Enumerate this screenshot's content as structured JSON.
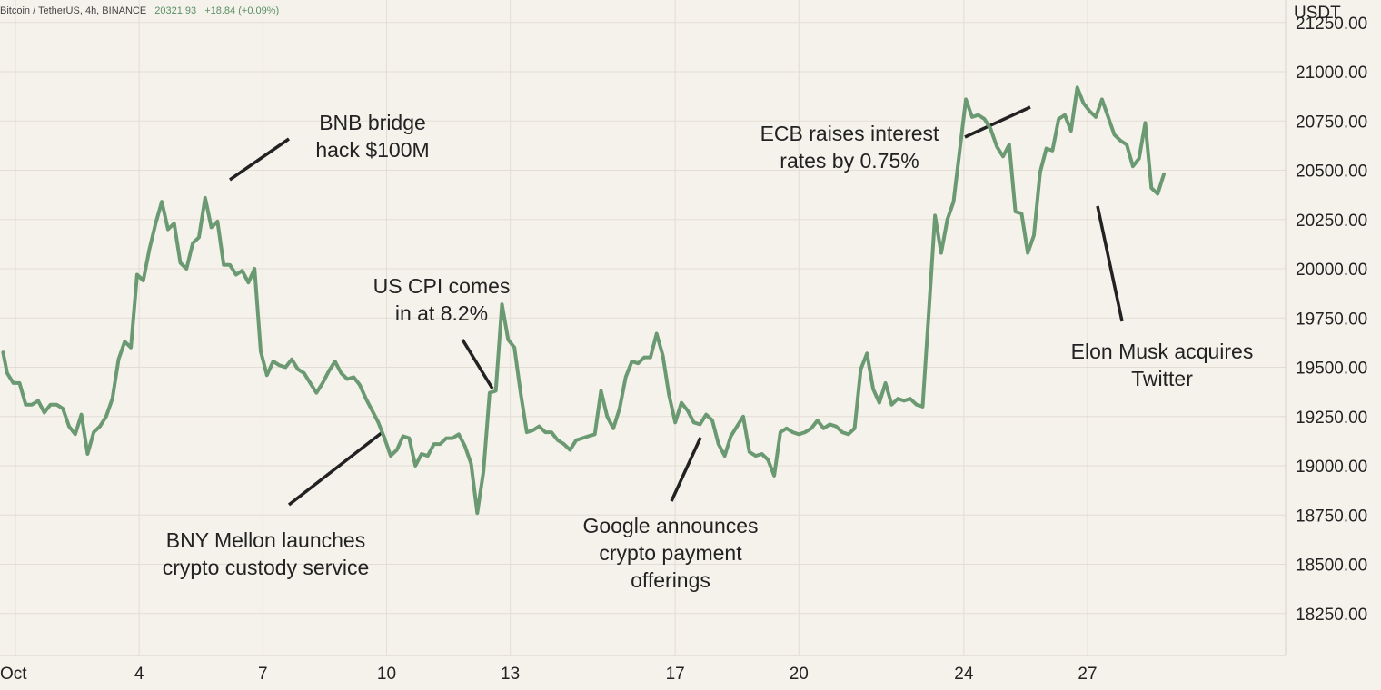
{
  "header": {
    "symbol": "Bitcoin / TetherUS, 4h, BINANCE",
    "last_price": "20321.93",
    "change": "+18.84 (+0.09%)"
  },
  "colors": {
    "background": "#f5f2ec",
    "line": "#6b9a72",
    "grid": "#e3ddd3",
    "annotation_line": "#222222",
    "header_green": "#5a8f63"
  },
  "annotations": [
    {
      "id": "bnb",
      "text": "BNB bridge\nhack $100M"
    },
    {
      "id": "cpi",
      "text": "US CPI comes\nin at 8.2%"
    },
    {
      "id": "ecb",
      "text": "ECB raises interest\nrates by 0.75%"
    },
    {
      "id": "musk",
      "text": "Elon Musk acquires\nTwitter"
    },
    {
      "id": "bny",
      "text": "BNY Mellon launches\ncrypto custody service"
    },
    {
      "id": "google",
      "text": "Google announces\ncrypto payment\nofferings"
    }
  ],
  "chart_data": {
    "type": "line",
    "title": "",
    "xlabel": "",
    "ylabel": "USDT",
    "grid": true,
    "x_tick_labels": [
      "Oct",
      "4",
      "7",
      "10",
      "13",
      "17",
      "20",
      "24",
      "27"
    ],
    "x_tick_days": [
      1,
      4,
      7,
      10,
      13,
      17,
      20,
      24,
      27
    ],
    "y_tick_labels": [
      "21250.00",
      "21000.00",
      "20750.00",
      "20500.00",
      "20250.00",
      "20000.00",
      "19750.00",
      "19500.00",
      "19250.00",
      "19000.00",
      "18750.00",
      "18500.00",
      "18250.00"
    ],
    "ylim": [
      18000,
      21300
    ],
    "xlim_days": [
      0.7,
      31.45
    ],
    "series": [
      {
        "values": [
          [
            0.7,
            19575
          ],
          [
            0.8,
            19470
          ],
          [
            0.95,
            19420
          ],
          [
            1.1,
            19420
          ],
          [
            1.25,
            19310
          ],
          [
            1.4,
            19310
          ],
          [
            1.55,
            19330
          ],
          [
            1.7,
            19270
          ],
          [
            1.85,
            19310
          ],
          [
            2.0,
            19310
          ],
          [
            2.15,
            19290
          ],
          [
            2.3,
            19200
          ],
          [
            2.45,
            19160
          ],
          [
            2.6,
            19260
          ],
          [
            2.75,
            19060
          ],
          [
            2.9,
            19170
          ],
          [
            3.05,
            19200
          ],
          [
            3.2,
            19250
          ],
          [
            3.35,
            19340
          ],
          [
            3.5,
            19540
          ],
          [
            3.65,
            19630
          ],
          [
            3.8,
            19600
          ],
          [
            3.95,
            19970
          ],
          [
            4.1,
            19940
          ],
          [
            4.25,
            20100
          ],
          [
            4.4,
            20230
          ],
          [
            4.55,
            20340
          ],
          [
            4.7,
            20200
          ],
          [
            4.85,
            20230
          ],
          [
            5.0,
            20030
          ],
          [
            5.15,
            20000
          ],
          [
            5.3,
            20130
          ],
          [
            5.45,
            20160
          ],
          [
            5.6,
            20360
          ],
          [
            5.75,
            20210
          ],
          [
            5.9,
            20240
          ],
          [
            6.05,
            20020
          ],
          [
            6.2,
            20020
          ],
          [
            6.35,
            19970
          ],
          [
            6.5,
            19990
          ],
          [
            6.65,
            19930
          ],
          [
            6.8,
            20000
          ],
          [
            6.95,
            19580
          ],
          [
            7.1,
            19460
          ],
          [
            7.25,
            19530
          ],
          [
            7.4,
            19510
          ],
          [
            7.55,
            19500
          ],
          [
            7.7,
            19540
          ],
          [
            7.85,
            19490
          ],
          [
            8.0,
            19470
          ],
          [
            8.15,
            19420
          ],
          [
            8.3,
            19370
          ],
          [
            8.45,
            19420
          ],
          [
            8.6,
            19480
          ],
          [
            8.75,
            19530
          ],
          [
            8.9,
            19470
          ],
          [
            9.05,
            19440
          ],
          [
            9.2,
            19450
          ],
          [
            9.35,
            19410
          ],
          [
            9.5,
            19340
          ],
          [
            9.65,
            19280
          ],
          [
            9.8,
            19220
          ],
          [
            9.95,
            19140
          ],
          [
            10.1,
            19050
          ],
          [
            10.25,
            19080
          ],
          [
            10.4,
            19150
          ],
          [
            10.55,
            19140
          ],
          [
            10.7,
            19000
          ],
          [
            10.85,
            19060
          ],
          [
            11.0,
            19050
          ],
          [
            11.15,
            19110
          ],
          [
            11.3,
            19110
          ],
          [
            11.45,
            19140
          ],
          [
            11.6,
            19140
          ],
          [
            11.75,
            19160
          ],
          [
            11.9,
            19100
          ],
          [
            12.05,
            19010
          ],
          [
            12.2,
            18760
          ],
          [
            12.35,
            18970
          ],
          [
            12.5,
            19370
          ],
          [
            12.65,
            19380
          ],
          [
            12.8,
            19820
          ],
          [
            12.95,
            19640
          ],
          [
            13.1,
            19600
          ],
          [
            13.25,
            19370
          ],
          [
            13.4,
            19170
          ],
          [
            13.55,
            19180
          ],
          [
            13.7,
            19200
          ],
          [
            13.85,
            19170
          ],
          [
            14.0,
            19170
          ],
          [
            14.15,
            19130
          ],
          [
            14.3,
            19110
          ],
          [
            14.45,
            19080
          ],
          [
            14.6,
            19130
          ],
          [
            14.75,
            19140
          ],
          [
            14.9,
            19150
          ],
          [
            15.05,
            19160
          ],
          [
            15.2,
            19380
          ],
          [
            15.35,
            19250
          ],
          [
            15.5,
            19190
          ],
          [
            15.65,
            19290
          ],
          [
            15.8,
            19450
          ],
          [
            15.95,
            19530
          ],
          [
            16.1,
            19520
          ],
          [
            16.25,
            19550
          ],
          [
            16.4,
            19550
          ],
          [
            16.55,
            19670
          ],
          [
            16.7,
            19560
          ],
          [
            16.85,
            19360
          ],
          [
            17.0,
            19220
          ],
          [
            17.15,
            19320
          ],
          [
            17.3,
            19280
          ],
          [
            17.45,
            19220
          ],
          [
            17.6,
            19210
          ],
          [
            17.75,
            19260
          ],
          [
            17.9,
            19230
          ],
          [
            18.05,
            19110
          ],
          [
            18.2,
            19050
          ],
          [
            18.35,
            19150
          ],
          [
            18.5,
            19200
          ],
          [
            18.65,
            19250
          ],
          [
            18.8,
            19070
          ],
          [
            18.95,
            19050
          ],
          [
            19.1,
            19060
          ],
          [
            19.25,
            19030
          ],
          [
            19.4,
            18950
          ],
          [
            19.55,
            19170
          ],
          [
            19.7,
            19190
          ],
          [
            19.85,
            19170
          ],
          [
            20.0,
            19160
          ],
          [
            20.15,
            19170
          ],
          [
            20.3,
            19190
          ],
          [
            20.45,
            19230
          ],
          [
            20.6,
            19190
          ],
          [
            20.75,
            19210
          ],
          [
            20.9,
            19200
          ],
          [
            21.05,
            19170
          ],
          [
            21.2,
            19160
          ],
          [
            21.35,
            19190
          ],
          [
            21.5,
            19490
          ],
          [
            21.65,
            19570
          ],
          [
            21.8,
            19390
          ],
          [
            21.95,
            19320
          ],
          [
            22.1,
            19420
          ],
          [
            22.25,
            19310
          ],
          [
            22.4,
            19340
          ],
          [
            22.55,
            19330
          ],
          [
            22.7,
            19340
          ],
          [
            22.85,
            19310
          ],
          [
            23.0,
            19300
          ],
          [
            23.15,
            19780
          ],
          [
            23.3,
            20270
          ],
          [
            23.45,
            20080
          ],
          [
            23.6,
            20250
          ],
          [
            23.75,
            20340
          ],
          [
            23.9,
            20600
          ],
          [
            24.05,
            20860
          ],
          [
            24.2,
            20770
          ],
          [
            24.35,
            20780
          ],
          [
            24.5,
            20760
          ],
          [
            24.65,
            20710
          ],
          [
            24.8,
            20620
          ],
          [
            24.95,
            20570
          ],
          [
            25.1,
            20630
          ],
          [
            25.25,
            20290
          ],
          [
            25.4,
            20280
          ],
          [
            25.55,
            20080
          ],
          [
            25.7,
            20170
          ],
          [
            25.85,
            20490
          ],
          [
            26.0,
            20610
          ],
          [
            26.15,
            20600
          ],
          [
            26.3,
            20760
          ],
          [
            26.45,
            20780
          ],
          [
            26.6,
            20700
          ],
          [
            26.75,
            20920
          ],
          [
            26.9,
            20840
          ],
          [
            27.05,
            20800
          ],
          [
            27.2,
            20770
          ],
          [
            27.35,
            20860
          ],
          [
            27.5,
            20770
          ],
          [
            27.65,
            20680
          ],
          [
            27.8,
            20650
          ],
          [
            27.95,
            20630
          ],
          [
            28.1,
            20520
          ],
          [
            28.25,
            20560
          ],
          [
            28.4,
            20740
          ],
          [
            28.55,
            20410
          ],
          [
            28.7,
            20380
          ],
          [
            28.85,
            20480
          ]
        ]
      }
    ]
  }
}
